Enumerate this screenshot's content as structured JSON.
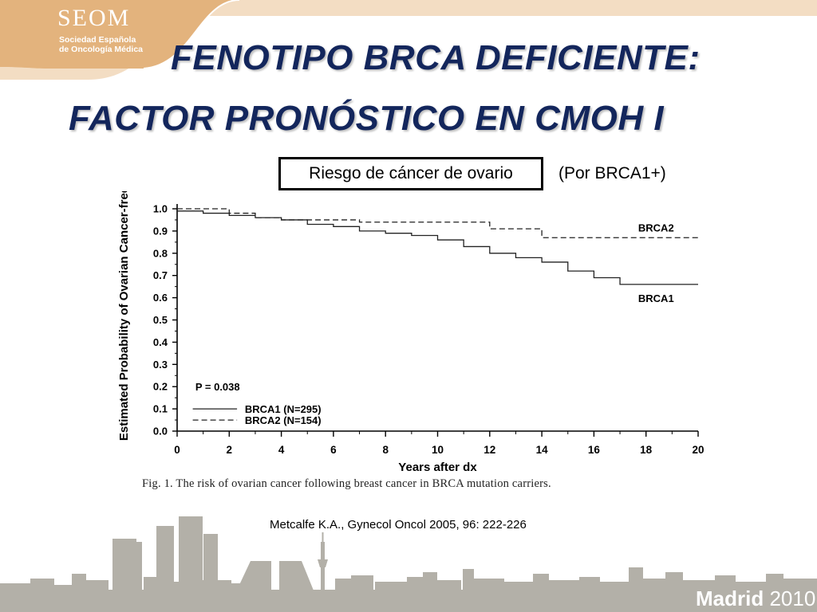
{
  "header": {
    "logo_title": "SEOM",
    "logo_subtitle_line1": "Sociedad Española",
    "logo_subtitle_line2": "de Oncología Médica"
  },
  "slide": {
    "title_line1": "FENOTIPO BRCA DEFICIENTE:",
    "title_line2": "FACTOR PRONÓSTICO EN CMOH I",
    "boxed_label": "Riesgo de cáncer de ovario",
    "side_label": "(Por BRCA1+)",
    "figure_caption": "Fig. 1. The risk of ovarian cancer following breast cancer in BRCA mutation carriers.",
    "citation": "Metcalfe K.A., Gynecol Oncol  2005, 96: 222-226"
  },
  "footer": {
    "city": "Madrid",
    "year": "2010"
  },
  "colors": {
    "title": "#13265c",
    "banner": "#e3b37d",
    "banner_light": "#f3ddc3",
    "skyline": "#b3b0a8"
  },
  "chart_data": {
    "type": "line",
    "xlabel": "Years after dx",
    "ylabel": "Estimated Probability of Ovarian Cancer-free",
    "xlim": [
      0,
      20
    ],
    "ylim": [
      0.0,
      1.0
    ],
    "x_ticks": [
      "0",
      "2",
      "4",
      "6",
      "8",
      "10",
      "12",
      "14",
      "16",
      "18",
      "20"
    ],
    "y_ticks": [
      "0.0",
      "0.1",
      "0.2",
      "0.3",
      "0.4",
      "0.5",
      "0.6",
      "0.7",
      "0.8",
      "0.9",
      "1.0"
    ],
    "grid": false,
    "step": true,
    "annotation": "P = 0.038",
    "legend": [
      {
        "label": "BRCA1 (N=295)",
        "style": "solid"
      },
      {
        "label": "BRCA2 (N=154)",
        "style": "dashed"
      }
    ],
    "series": [
      {
        "name": "BRCA1",
        "style": "solid",
        "x": [
          0,
          1,
          2,
          3,
          4,
          5,
          6,
          7,
          8,
          9,
          10,
          11,
          12,
          13,
          14,
          15,
          16,
          17,
          20
        ],
        "y": [
          0.99,
          0.98,
          0.97,
          0.96,
          0.95,
          0.93,
          0.92,
          0.9,
          0.89,
          0.88,
          0.86,
          0.83,
          0.8,
          0.78,
          0.76,
          0.72,
          0.69,
          0.66,
          0.66
        ]
      },
      {
        "name": "BRCA2",
        "style": "dashed",
        "x": [
          0,
          2,
          3,
          4,
          7,
          12,
          14,
          20
        ],
        "y": [
          1.0,
          0.98,
          0.96,
          0.95,
          0.94,
          0.91,
          0.87,
          0.87
        ]
      }
    ]
  }
}
